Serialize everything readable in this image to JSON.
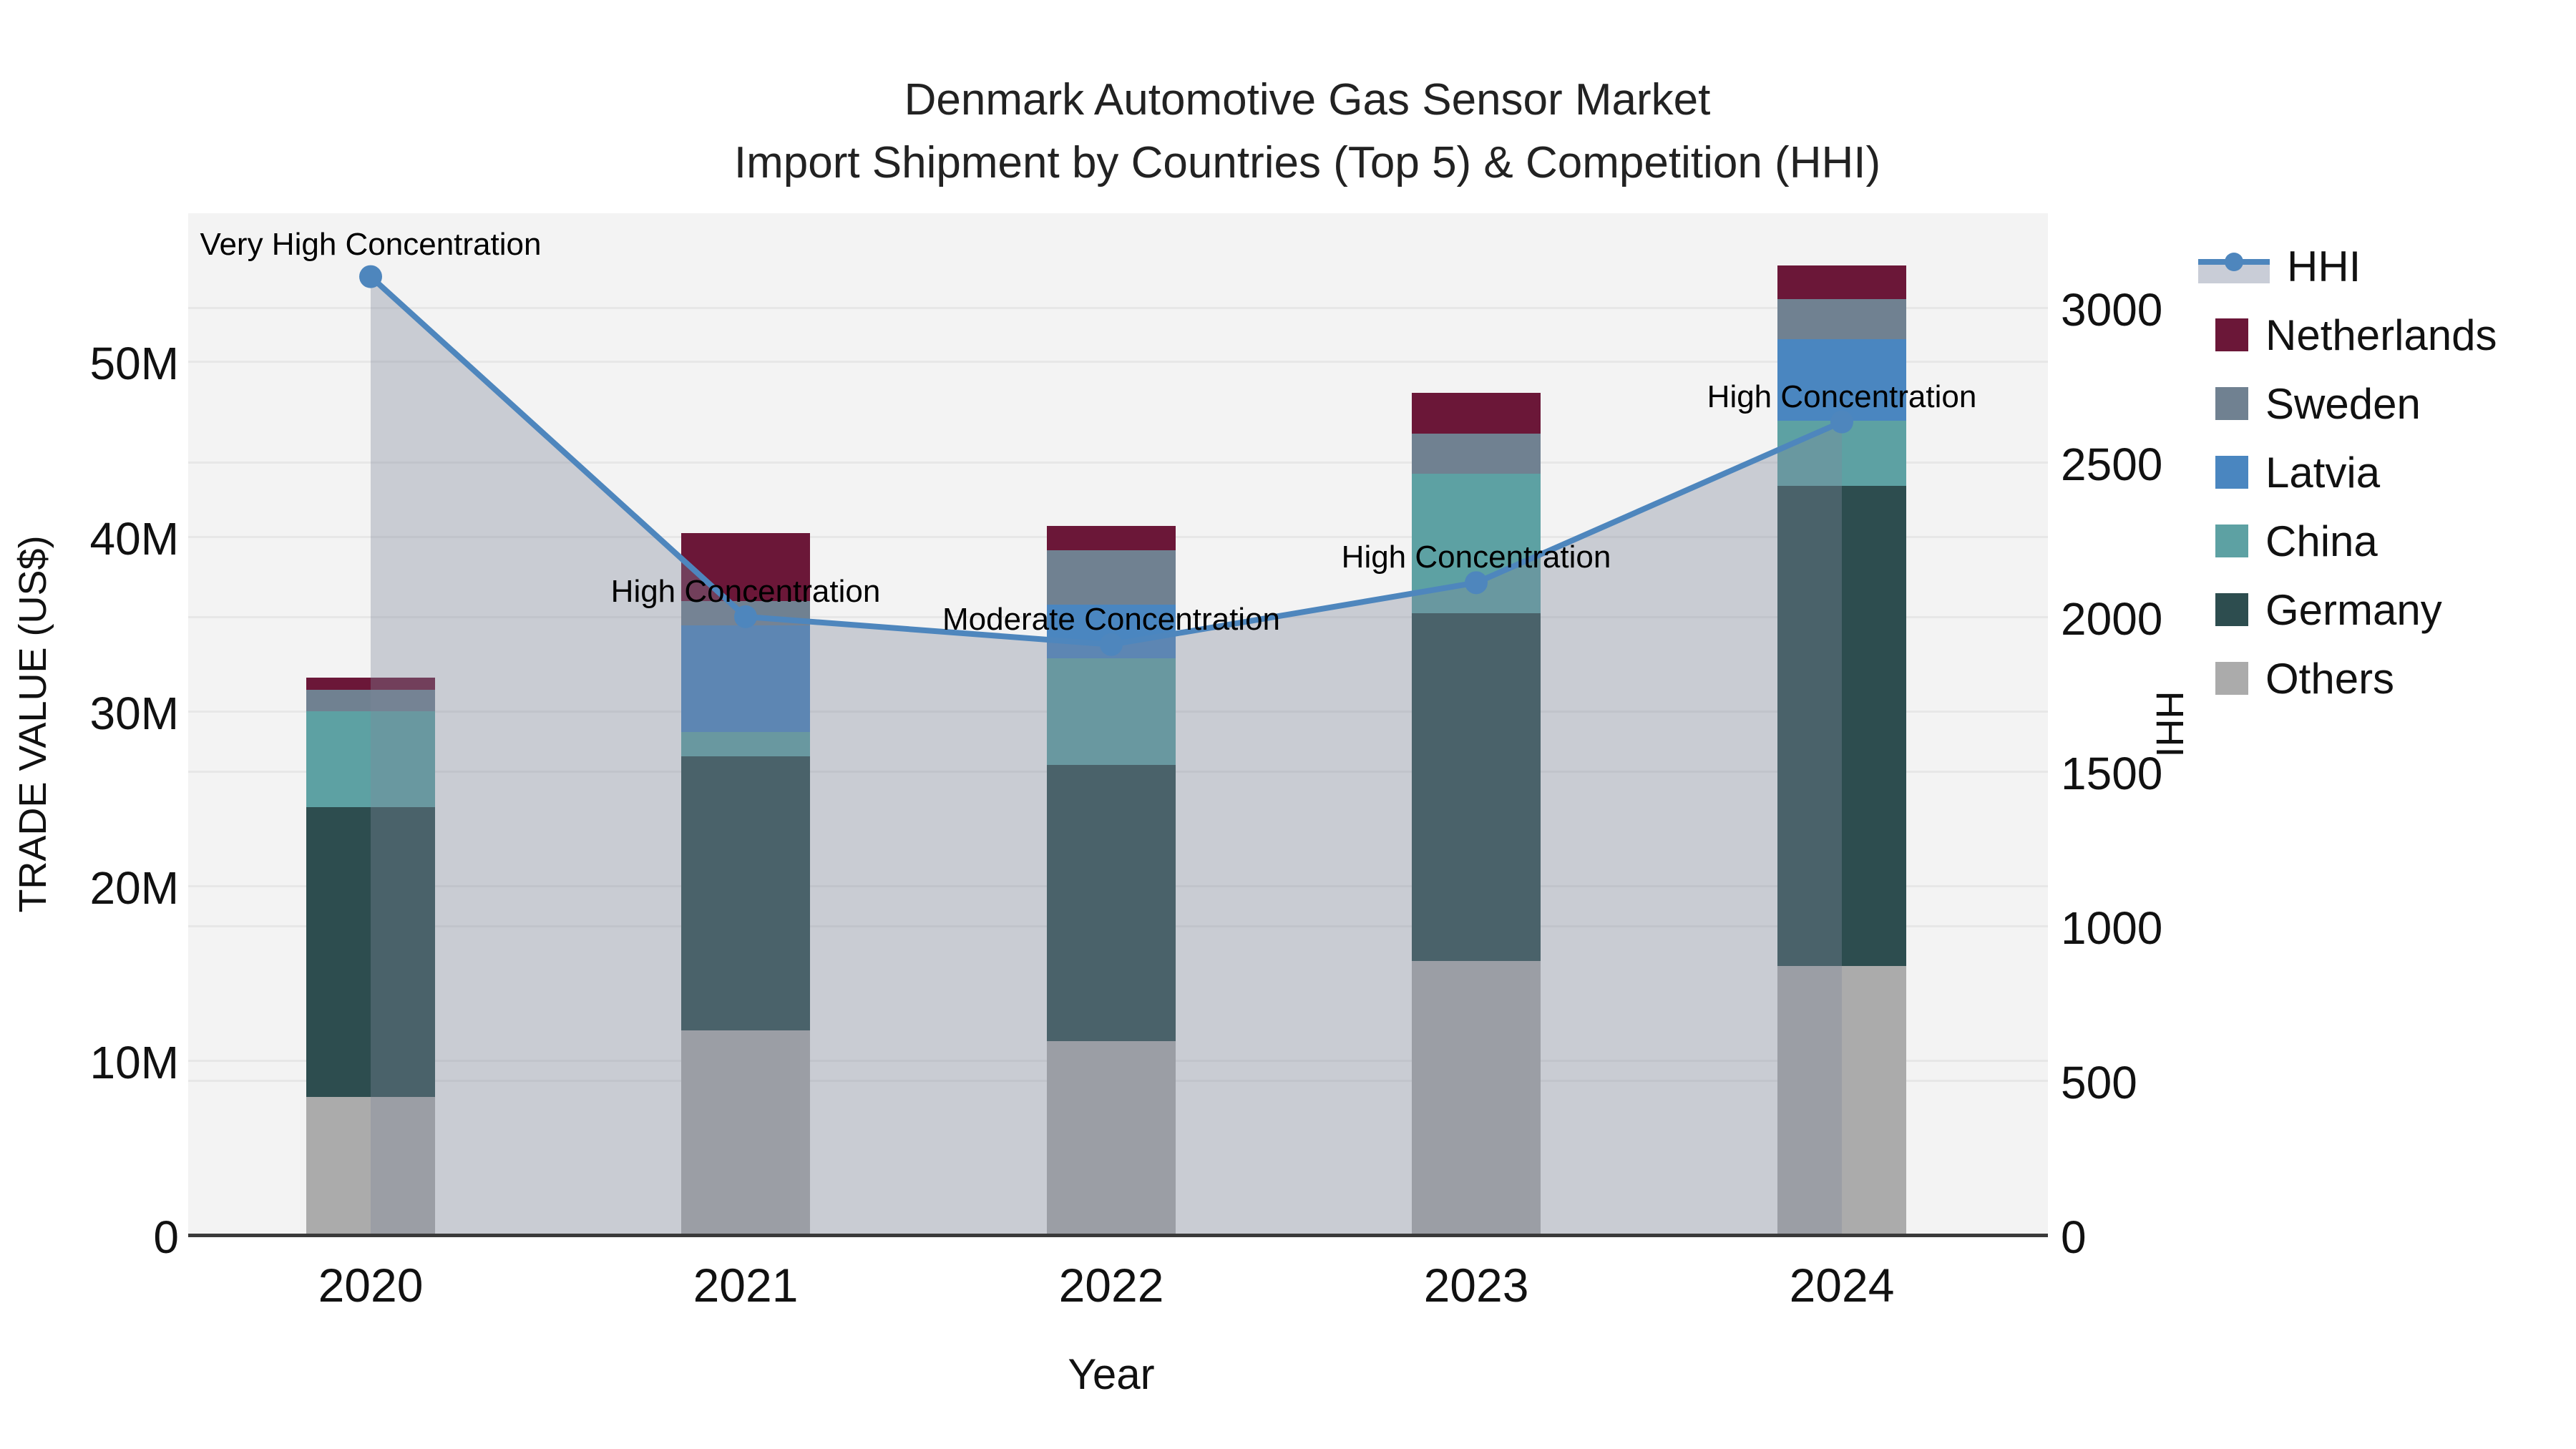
{
  "title": {
    "line1": "Denmark Automotive Gas Sensor Market",
    "line2": "Import Shipment by Countries (Top 5) & Competition (HHI)"
  },
  "axes": {
    "xlabel": "Year",
    "ylabel_left": "TRADE VALUE (US$)",
    "ylabel_right": "HHI",
    "yticks_left": [
      {
        "label": "0",
        "value": 0
      },
      {
        "label": "10M",
        "value": 10
      },
      {
        "label": "20M",
        "value": 20
      },
      {
        "label": "30M",
        "value": 30
      },
      {
        "label": "40M",
        "value": 40
      },
      {
        "label": "50M",
        "value": 50
      }
    ],
    "yticks_right": [
      {
        "label": "0",
        "value": 0
      },
      {
        "label": "500",
        "value": 500
      },
      {
        "label": "1000",
        "value": 1000
      },
      {
        "label": "1500",
        "value": 1500
      },
      {
        "label": "2000",
        "value": 2000
      },
      {
        "label": "2500",
        "value": 2500
      },
      {
        "label": "3000",
        "value": 3000
      }
    ]
  },
  "legend": {
    "items": [
      {
        "label": "HHI",
        "type": "line",
        "color": "#4e86bd"
      },
      {
        "label": "Netherlands",
        "type": "square",
        "color": "#6b1738"
      },
      {
        "label": "Sweden",
        "type": "square",
        "color": "#708191"
      },
      {
        "label": "Latvia",
        "type": "square",
        "color": "#4a86c0"
      },
      {
        "label": "China",
        "type": "square",
        "color": "#5da1a3"
      },
      {
        "label": "Germany",
        "type": "square",
        "color": "#2d4d4f"
      },
      {
        "label": "Others",
        "type": "square",
        "color": "#ababab"
      }
    ]
  },
  "chart_data": {
    "type": "bar",
    "subtype": "stacked-bars-with-line",
    "categories": [
      "2020",
      "2021",
      "2022",
      "2023",
      "2024"
    ],
    "value_unit": "million US$",
    "series": [
      {
        "name": "Netherlands",
        "color": "#6b1738",
        "values": [
          0.7,
          3.9,
          1.4,
          2.3,
          1.9
        ]
      },
      {
        "name": "Sweden",
        "color": "#708191",
        "values": [
          1.2,
          1.4,
          3.1,
          2.3,
          2.3
        ]
      },
      {
        "name": "Latvia",
        "color": "#4a86c0",
        "values": [
          0,
          6.1,
          3.1,
          0,
          4.7
        ]
      },
      {
        "name": "China",
        "color": "#5da1a3",
        "values": [
          5.5,
          1.4,
          6.1,
          8.0,
          3.7
        ]
      },
      {
        "name": "Germany",
        "color": "#2d4d4f",
        "values": [
          16.6,
          15.7,
          15.8,
          19.9,
          27.5
        ]
      },
      {
        "name": "Others",
        "color": "#ababab",
        "values": [
          7.9,
          11.7,
          11.1,
          15.7,
          15.4
        ]
      }
    ],
    "stack_order_bottom_to_top": [
      "Others",
      "Germany",
      "China",
      "Latvia",
      "Sweden",
      "Netherlands"
    ],
    "totals": [
      31.9,
      40.2,
      40.6,
      48.2,
      55.5
    ],
    "hhi": {
      "name": "HHI",
      "values": [
        3100,
        2000,
        1910,
        2110,
        2630
      ],
      "line_color": "#4e86bd",
      "area_color": "rgba(128,135,156,0.36)",
      "annotations": [
        {
          "year": "2020",
          "text": "Very High Concentration"
        },
        {
          "year": "2021",
          "text": "High Concentration"
        },
        {
          "year": "2022",
          "text": "Moderate Concentration"
        },
        {
          "year": "2023",
          "text": "High Concentration"
        },
        {
          "year": "2024",
          "text": "High Concentration"
        }
      ]
    },
    "ylim_left": [
      0,
      58.5
    ],
    "ylim_right": [
      0,
      3305
    ],
    "gridlines_left": [
      10,
      20,
      30,
      40,
      50
    ],
    "gridlines_right": [
      500,
      1000,
      1500,
      2000,
      2500,
      3000
    ],
    "grid": true,
    "legend_position": "right",
    "plot_background": "#f3f3f3"
  }
}
